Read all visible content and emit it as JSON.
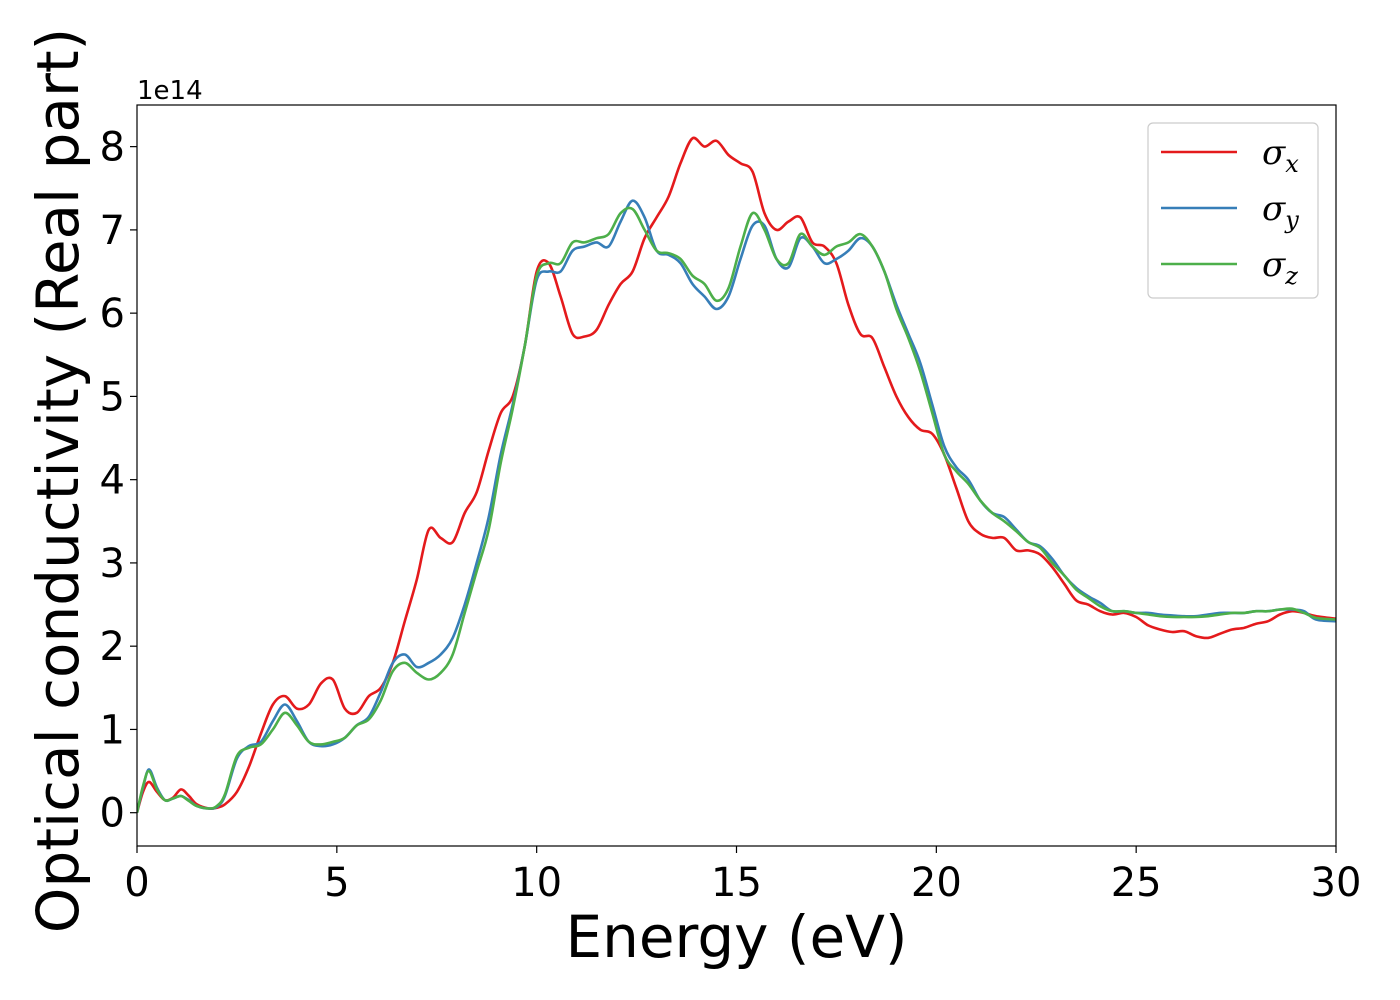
{
  "chart_data": {
    "type": "line",
    "title": "",
    "xlabel": "Energy (eV)",
    "ylabel": "Optical conductivity (Real part)",
    "y_offset_label": "1e14",
    "xlim": [
      0,
      30
    ],
    "ylim": [
      -0.4,
      8.5
    ],
    "xticks": [
      0,
      5,
      10,
      15,
      20,
      25,
      30
    ],
    "yticks": [
      0,
      1,
      2,
      3,
      4,
      5,
      6,
      7,
      8
    ],
    "grid": false,
    "legend_position": "top-right",
    "series": [
      {
        "name": "σx",
        "symbol": "σ",
        "subscript": "x",
        "color": "#e41a1c",
        "x": [
          0,
          0.15,
          0.3,
          0.5,
          0.7,
          0.9,
          1.1,
          1.3,
          1.5,
          1.8,
          2.0,
          2.2,
          2.5,
          2.8,
          3.1,
          3.4,
          3.7,
          4.0,
          4.3,
          4.6,
          4.9,
          5.2,
          5.5,
          5.8,
          6.1,
          6.4,
          6.7,
          7.0,
          7.3,
          7.6,
          7.9,
          8.2,
          8.5,
          8.8,
          9.1,
          9.4,
          9.7,
          10.0,
          10.3,
          10.6,
          10.9,
          11.2,
          11.5,
          11.8,
          12.1,
          12.4,
          12.7,
          13.0,
          13.3,
          13.6,
          13.9,
          14.2,
          14.5,
          14.8,
          15.1,
          15.4,
          15.7,
          16.0,
          16.3,
          16.6,
          16.9,
          17.2,
          17.5,
          17.8,
          18.1,
          18.4,
          18.7,
          19.0,
          19.3,
          19.6,
          19.9,
          20.2,
          20.5,
          20.8,
          21.1,
          21.4,
          21.7,
          22.0,
          22.3,
          22.6,
          22.9,
          23.2,
          23.5,
          23.8,
          24.1,
          24.4,
          24.7,
          25.0,
          25.3,
          25.6,
          25.9,
          26.2,
          26.5,
          26.8,
          27.1,
          27.4,
          27.7,
          28.0,
          28.3,
          28.6,
          28.9,
          29.2,
          29.5,
          30.0
        ],
        "y": [
          0.0,
          0.25,
          0.37,
          0.25,
          0.15,
          0.18,
          0.28,
          0.2,
          0.1,
          0.05,
          0.06,
          0.1,
          0.25,
          0.55,
          0.95,
          1.3,
          1.4,
          1.25,
          1.3,
          1.55,
          1.6,
          1.25,
          1.2,
          1.4,
          1.5,
          1.8,
          2.3,
          2.8,
          3.4,
          3.3,
          3.25,
          3.6,
          3.85,
          4.35,
          4.8,
          5.0,
          5.6,
          6.5,
          6.6,
          6.2,
          5.75,
          5.72,
          5.8,
          6.1,
          6.35,
          6.5,
          6.9,
          7.15,
          7.4,
          7.8,
          8.1,
          8.0,
          8.07,
          7.9,
          7.8,
          7.7,
          7.2,
          7.0,
          7.1,
          7.15,
          6.85,
          6.8,
          6.6,
          6.1,
          5.75,
          5.7,
          5.35,
          5.0,
          4.75,
          4.6,
          4.55,
          4.3,
          3.9,
          3.5,
          3.35,
          3.3,
          3.3,
          3.15,
          3.15,
          3.1,
          2.95,
          2.75,
          2.55,
          2.5,
          2.42,
          2.38,
          2.4,
          2.35,
          2.25,
          2.2,
          2.17,
          2.18,
          2.12,
          2.1,
          2.15,
          2.2,
          2.22,
          2.27,
          2.3,
          2.38,
          2.42,
          2.4,
          2.36,
          2.33
        ]
      },
      {
        "name": "σy",
        "symbol": "σ",
        "subscript": "y",
        "color": "#377eb8",
        "x": [
          0,
          0.15,
          0.3,
          0.5,
          0.7,
          0.9,
          1.1,
          1.3,
          1.5,
          1.8,
          2.0,
          2.2,
          2.5,
          2.8,
          3.1,
          3.4,
          3.7,
          4.0,
          4.3,
          4.6,
          4.9,
          5.2,
          5.5,
          5.8,
          6.1,
          6.4,
          6.7,
          7.0,
          7.3,
          7.6,
          7.9,
          8.2,
          8.5,
          8.8,
          9.1,
          9.4,
          9.7,
          10.0,
          10.3,
          10.6,
          10.9,
          11.2,
          11.5,
          11.8,
          12.1,
          12.4,
          12.7,
          13.0,
          13.3,
          13.6,
          13.9,
          14.2,
          14.5,
          14.8,
          15.1,
          15.4,
          15.7,
          16.0,
          16.3,
          16.6,
          16.9,
          17.2,
          17.5,
          17.8,
          18.1,
          18.4,
          18.7,
          19.0,
          19.3,
          19.6,
          19.9,
          20.2,
          20.5,
          20.8,
          21.1,
          21.4,
          21.7,
          22.0,
          22.3,
          22.6,
          22.9,
          23.2,
          23.5,
          23.8,
          24.1,
          24.4,
          24.7,
          25.0,
          25.3,
          25.6,
          25.9,
          26.2,
          26.5,
          26.8,
          27.1,
          27.4,
          27.7,
          28.0,
          28.3,
          28.6,
          28.9,
          29.2,
          29.5,
          30.0
        ],
        "y": [
          0.0,
          0.3,
          0.52,
          0.3,
          0.15,
          0.17,
          0.2,
          0.15,
          0.08,
          0.05,
          0.07,
          0.2,
          0.65,
          0.8,
          0.85,
          1.1,
          1.3,
          1.1,
          0.85,
          0.8,
          0.82,
          0.9,
          1.05,
          1.15,
          1.45,
          1.8,
          1.9,
          1.75,
          1.8,
          1.9,
          2.1,
          2.5,
          3.0,
          3.55,
          4.3,
          4.9,
          5.6,
          6.4,
          6.5,
          6.5,
          6.75,
          6.8,
          6.85,
          6.8,
          7.1,
          7.35,
          7.15,
          6.75,
          6.7,
          6.6,
          6.35,
          6.2,
          6.05,
          6.2,
          6.65,
          7.05,
          7.05,
          6.65,
          6.55,
          6.9,
          6.8,
          6.6,
          6.65,
          6.75,
          6.9,
          6.8,
          6.5,
          6.1,
          5.75,
          5.4,
          4.9,
          4.4,
          4.15,
          4.0,
          3.75,
          3.6,
          3.55,
          3.4,
          3.25,
          3.2,
          3.05,
          2.85,
          2.7,
          2.6,
          2.52,
          2.42,
          2.42,
          2.4,
          2.4,
          2.38,
          2.37,
          2.36,
          2.36,
          2.38,
          2.4,
          2.4,
          2.4,
          2.42,
          2.42,
          2.44,
          2.44,
          2.42,
          2.32,
          2.3
        ]
      },
      {
        "name": "σz",
        "symbol": "σ",
        "subscript": "z",
        "color": "#4daf4a",
        "x": [
          0,
          0.15,
          0.3,
          0.5,
          0.7,
          0.9,
          1.1,
          1.3,
          1.5,
          1.8,
          2.0,
          2.2,
          2.5,
          2.8,
          3.1,
          3.4,
          3.7,
          4.0,
          4.3,
          4.6,
          4.9,
          5.2,
          5.5,
          5.8,
          6.1,
          6.4,
          6.7,
          7.0,
          7.3,
          7.6,
          7.9,
          8.2,
          8.5,
          8.8,
          9.1,
          9.4,
          9.7,
          10.0,
          10.3,
          10.6,
          10.9,
          11.2,
          11.5,
          11.8,
          12.1,
          12.4,
          12.7,
          13.0,
          13.3,
          13.6,
          13.9,
          14.2,
          14.5,
          14.8,
          15.1,
          15.4,
          15.7,
          16.0,
          16.3,
          16.6,
          16.9,
          17.2,
          17.5,
          17.8,
          18.1,
          18.4,
          18.7,
          19.0,
          19.3,
          19.6,
          19.9,
          20.2,
          20.5,
          20.8,
          21.1,
          21.4,
          21.7,
          22.0,
          22.3,
          22.6,
          22.9,
          23.2,
          23.5,
          23.8,
          24.1,
          24.4,
          24.7,
          25.0,
          25.3,
          25.6,
          25.9,
          26.2,
          26.5,
          26.8,
          27.1,
          27.4,
          27.7,
          28.0,
          28.3,
          28.6,
          28.9,
          29.2,
          29.5,
          30.0
        ],
        "y": [
          0.0,
          0.32,
          0.5,
          0.28,
          0.15,
          0.17,
          0.2,
          0.14,
          0.08,
          0.05,
          0.08,
          0.22,
          0.68,
          0.78,
          0.82,
          1.0,
          1.2,
          1.05,
          0.85,
          0.82,
          0.85,
          0.9,
          1.05,
          1.12,
          1.35,
          1.7,
          1.8,
          1.68,
          1.6,
          1.68,
          1.9,
          2.4,
          2.9,
          3.4,
          4.2,
          4.85,
          5.6,
          6.45,
          6.6,
          6.6,
          6.85,
          6.85,
          6.9,
          6.95,
          7.2,
          7.25,
          7.0,
          6.75,
          6.72,
          6.65,
          6.45,
          6.35,
          6.15,
          6.3,
          6.8,
          7.2,
          7.0,
          6.65,
          6.6,
          6.95,
          6.8,
          6.7,
          6.8,
          6.85,
          6.95,
          6.8,
          6.5,
          6.05,
          5.7,
          5.3,
          4.8,
          4.3,
          4.1,
          3.95,
          3.75,
          3.6,
          3.5,
          3.38,
          3.25,
          3.18,
          3.0,
          2.85,
          2.68,
          2.58,
          2.48,
          2.42,
          2.42,
          2.4,
          2.38,
          2.36,
          2.35,
          2.35,
          2.35,
          2.36,
          2.38,
          2.4,
          2.4,
          2.42,
          2.42,
          2.44,
          2.45,
          2.4,
          2.34,
          2.32
        ]
      }
    ]
  }
}
